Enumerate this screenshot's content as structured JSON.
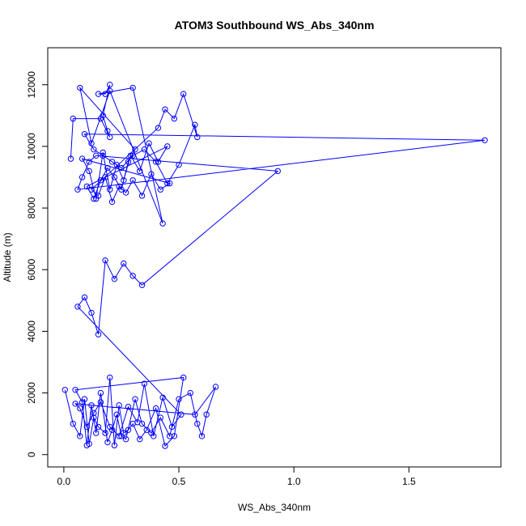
{
  "chart_data": {
    "type": "line",
    "title": "ATOM3 Southbound WS_Abs_340nm",
    "xlabel": "WS_Abs_340nm",
    "ylabel": "Altitude (m)",
    "xlim": [
      -0.07,
      1.9
    ],
    "ylim": [
      -400,
      13200
    ],
    "xticks": [
      0.0,
      0.5,
      1.0,
      1.5
    ],
    "xtick_labels": [
      "0.0",
      "0.5",
      "1.0",
      "1.5"
    ],
    "yticks": [
      0,
      2000,
      4000,
      6000,
      8000,
      10000,
      12000
    ],
    "ytick_labels": [
      "0",
      "2000",
      "4000",
      "6000",
      "8000",
      "10000",
      "12000"
    ],
    "grid": false,
    "legend": "none",
    "marker": "open-circle",
    "color": "#0000ff",
    "series": [
      {
        "x": [
          0.005,
          0.04,
          0.07,
          0.09,
          0.11,
          0.13,
          0.15,
          0.18,
          0.2,
          0.22,
          0.24,
          0.26,
          0.28,
          0.3,
          0.33,
          0.36,
          0.4,
          0.44,
          0.48,
          0.52,
          0.05,
          0.08,
          0.1,
          0.12,
          0.14,
          0.16,
          0.19,
          0.21,
          0.23,
          0.25,
          0.27,
          0.31,
          0.34,
          0.38,
          0.42,
          0.46,
          0.5,
          0.55,
          0.58,
          0.6,
          0.62,
          0.66,
          0.57,
          0.05,
          0.07,
          0.1,
          0.13,
          0.16,
          0.2,
          0.24,
          0.28,
          0.32,
          0.35,
          0.39,
          0.43,
          0.47,
          0.51,
          0.06,
          0.09,
          0.12,
          0.15,
          0.18,
          0.22,
          0.26,
          0.3,
          0.34,
          0.93,
          0.14,
          0.11,
          0.08,
          0.06,
          1.83,
          0.09,
          0.13,
          0.17,
          0.21,
          0.25,
          0.3,
          0.35,
          0.4,
          0.45,
          0.5,
          0.57,
          0.58,
          0.52,
          0.48,
          0.44,
          0.41,
          0.12,
          0.15,
          0.18,
          0.21,
          0.24,
          0.27,
          0.3,
          0.34,
          0.38,
          0.42,
          0.46,
          0.08,
          0.11,
          0.14,
          0.17,
          0.2,
          0.23,
          0.26,
          0.29,
          0.33,
          0.37,
          0.41,
          0.45,
          0.1,
          0.13,
          0.16,
          0.19,
          0.22,
          0.25,
          0.28,
          0.31,
          0.07,
          0.12,
          0.2,
          0.43,
          0.3,
          0.15,
          0.18,
          0.2,
          0.17,
          0.19,
          0.2,
          0.16,
          0.04,
          0.03
        ],
        "y": [
          2100,
          1000,
          600,
          1800,
          350,
          1200,
          900,
          700,
          2500,
          300,
          1600,
          700,
          800,
          1000,
          500,
          800,
          1500,
          280,
          600,
          2500,
          2100,
          1700,
          300,
          1600,
          700,
          2000,
          400,
          800,
          1300,
          600,
          500,
          1800,
          1000,
          700,
          1200,
          600,
          1800,
          2000,
          1000,
          600,
          1300,
          2200,
          1300,
          1650,
          1500,
          900,
          1350,
          1700,
          900,
          600,
          1550,
          1050,
          2300,
          600,
          1850,
          900,
          1300,
          4800,
          5100,
          4600,
          3900,
          6300,
          5700,
          6200,
          5800,
          5500,
          9200,
          9700,
          9500,
          9000,
          8600,
          10200,
          10400,
          9900,
          9700,
          9500,
          9300,
          9700,
          9900,
          9500,
          8800,
          9400,
          10700,
          10300,
          11700,
          10900,
          11200,
          10600,
          8600,
          8400,
          9000,
          8200,
          8700,
          8500,
          8900,
          8400,
          9100,
          8600,
          8800,
          9600,
          9200,
          8300,
          9800,
          8600,
          9400,
          8900,
          9700,
          9200,
          10100,
          9500,
          10000,
          8700,
          8300,
          8900,
          9300,
          9000,
          8600,
          9500,
          9900,
          11900,
          10100,
          11800,
          7500,
          11900,
          11700,
          11700,
          12000,
          11000,
          10500,
          10300,
          10900,
          10900,
          9600
        ]
      }
    ]
  }
}
